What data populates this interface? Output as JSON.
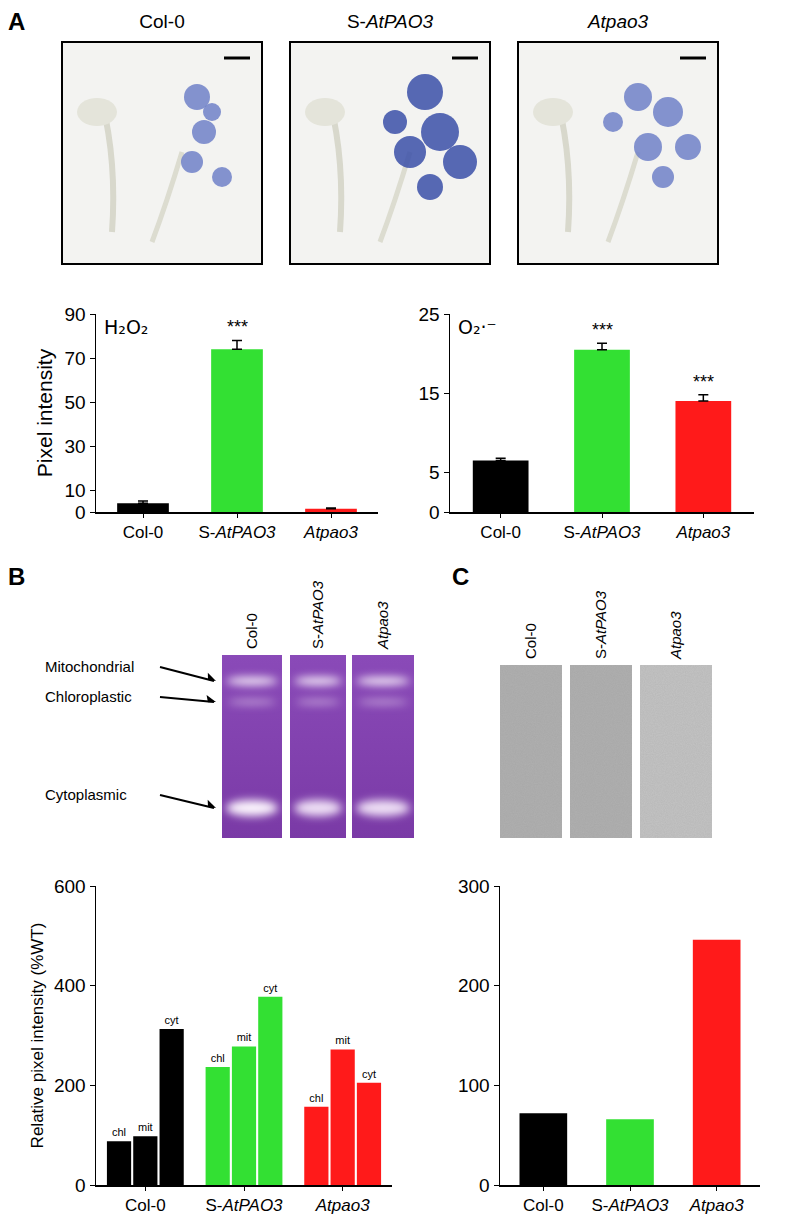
{
  "figure": {
    "panel_labels": [
      "A",
      "B",
      "C"
    ],
    "photo_labels": [
      "Col-0",
      "S-AtPAO3",
      "Atpao3"
    ],
    "gel_b": {
      "lane_labels": [
        "Col-0",
        "S-AtPAO3",
        "Atpao3"
      ],
      "band_labels": [
        "Mitochondrial",
        "Chloroplastic",
        "Cytoplasmic"
      ]
    },
    "gel_c": {
      "lane_labels": [
        "Col-0",
        "S-AtPAO3",
        "Atpao3"
      ]
    }
  },
  "chart_data": [
    {
      "type": "bar",
      "title": "H₂O₂",
      "y_label": "Pixel intensity",
      "categories": [
        "Col-0",
        "S-AtPAO3",
        "Atpao3"
      ],
      "values": [
        4,
        74,
        1.5
      ],
      "errors": [
        1,
        4,
        0.3
      ],
      "colors": [
        "#000000",
        "#33e033",
        "#ff1a1a"
      ],
      "ylim": [
        0,
        90
      ],
      "yticks": [
        0,
        10,
        30,
        50,
        70,
        90
      ],
      "grid": false,
      "annotations": [
        {
          "category": "S-AtPAO3",
          "text": "***"
        }
      ]
    },
    {
      "type": "bar",
      "title": "O₂·⁻",
      "categories": [
        "Col-0",
        "S-AtPAO3",
        "Atpao3"
      ],
      "values": [
        6.5,
        20.5,
        14
      ],
      "errors": [
        0.3,
        0.8,
        0.8
      ],
      "colors": [
        "#000000",
        "#33e033",
        "#ff1a1a"
      ],
      "ylim": [
        0,
        25
      ],
      "yticks": [
        0,
        5,
        15,
        25
      ],
      "grid": false,
      "annotations": [
        {
          "category": "S-AtPAO3",
          "text": "***"
        },
        {
          "category": "Atpao3",
          "text": "***"
        }
      ]
    },
    {
      "type": "bar",
      "y_label": "Relative pixel intensity (%WT)",
      "categories": [
        "Col-0",
        "S-AtPAO3",
        "Atpao3"
      ],
      "series": [
        {
          "name": "chl",
          "colors": [
            "#000000",
            "#33e033",
            "#ff1a1a"
          ],
          "values": [
            88,
            237,
            157
          ]
        },
        {
          "name": "mit",
          "colors": [
            "#000000",
            "#33e033",
            "#ff1a1a"
          ],
          "values": [
            98,
            278,
            272
          ]
        },
        {
          "name": "cyt",
          "colors": [
            "#000000",
            "#33e033",
            "#ff1a1a"
          ],
          "values": [
            313,
            378,
            205
          ]
        }
      ],
      "ylim": [
        0,
        600
      ],
      "yticks": [
        0,
        200,
        400,
        600
      ],
      "grid": false
    },
    {
      "type": "bar",
      "categories": [
        "Col-0",
        "S-AtPAO3",
        "Atpao3"
      ],
      "values": [
        72,
        66,
        246
      ],
      "colors": [
        "#000000",
        "#33e033",
        "#ff1a1a"
      ],
      "ylim": [
        0,
        300
      ],
      "yticks": [
        0,
        100,
        200,
        300
      ],
      "grid": false
    }
  ]
}
